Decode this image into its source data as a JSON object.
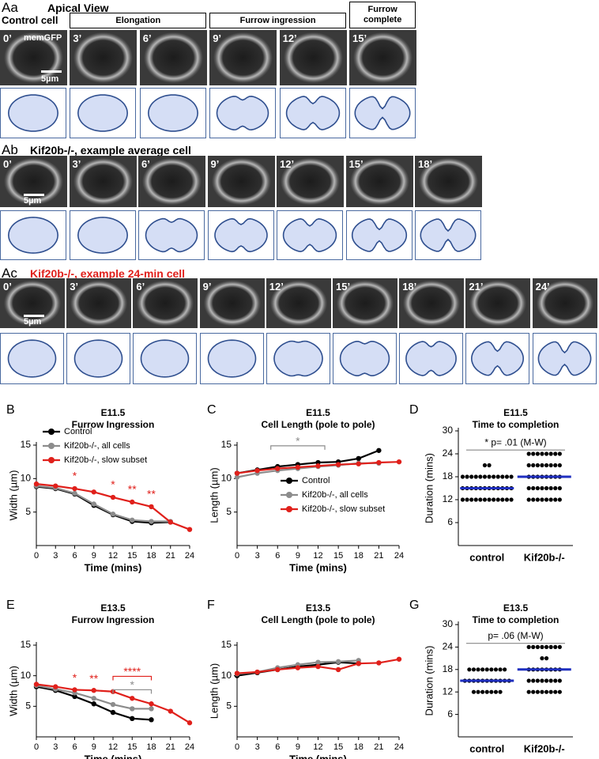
{
  "figure": {
    "rows": [
      {
        "label": "Aa",
        "title": "Apical View",
        "subtitle": "Control cell",
        "stages": [
          "Elongation",
          "Furrow ingression",
          "Furrow complete"
        ],
        "frames": [
          "0’",
          "3’",
          "6’",
          "9’",
          "12’",
          "15’"
        ],
        "marker": "memGFP",
        "scale": "5µm"
      },
      {
        "label": "Ab",
        "title": "Kif20b-/-, example average cell",
        "frames": [
          "0’",
          "3’",
          "6’",
          "9’",
          "12’",
          "15’",
          "18’"
        ],
        "scale": "5µm"
      },
      {
        "label": "Ac",
        "title": "Kif20b-/-, example 24-min cell",
        "title_color": "#e0201b",
        "frames": [
          "0’",
          "3’",
          "6’",
          "9’",
          "12’",
          "15’",
          "18’",
          "21’",
          "24’"
        ],
        "scale": "5µm"
      }
    ]
  },
  "chart_data": [
    {
      "panel": "B",
      "type": "line",
      "title": "E11.5",
      "subtitle": "Furrow Ingression",
      "x_label": "Time (mins)",
      "y_label": "Width (µm)",
      "x": [
        0,
        3,
        6,
        9,
        12,
        15,
        18,
        21,
        24
      ],
      "xlim": [
        0,
        24
      ],
      "xticks": [
        0,
        3,
        6,
        9,
        12,
        15,
        18,
        21,
        24
      ],
      "ylim": [
        0,
        15
      ],
      "yticks": [
        5,
        10,
        15
      ],
      "legend": "upper left",
      "series": [
        {
          "name": "Control",
          "color": "#000000",
          "values": [
            8.8,
            8.5,
            7.7,
            6.0,
            4.6,
            3.6,
            3.4,
            3.5,
            null
          ]
        },
        {
          "name": "Kif20b-/-, all cells",
          "color": "#8c8c8c",
          "values": [
            8.9,
            8.6,
            7.8,
            6.2,
            4.7,
            3.8,
            3.6,
            3.6,
            null
          ]
        },
        {
          "name": "Kif20b-/-, slow subset",
          "color": "#e0201b",
          "values": [
            9.2,
            8.9,
            8.5,
            8.0,
            7.2,
            6.5,
            5.8,
            3.5,
            2.4
          ]
        }
      ],
      "annotations": [
        {
          "text": "*",
          "x": 6,
          "color": "#e0201b"
        },
        {
          "text": "*",
          "x": 12,
          "color": "#e0201b"
        },
        {
          "text": "**",
          "x": 15,
          "color": "#e0201b"
        },
        {
          "text": "**",
          "x": 18,
          "color": "#e0201b"
        }
      ],
      "brackets": []
    },
    {
      "panel": "C",
      "type": "line",
      "title": "E11.5",
      "subtitle": "Cell Length (pole to pole)",
      "x_label": "Time (mins)",
      "y_label": "Length (µm)",
      "x": [
        0,
        3,
        6,
        9,
        12,
        15,
        18,
        21,
        24
      ],
      "xlim": [
        0,
        24
      ],
      "xticks": [
        0,
        3,
        6,
        9,
        12,
        15,
        18,
        21,
        24
      ],
      "ylim": [
        0,
        15
      ],
      "yticks": [
        5,
        10,
        15
      ],
      "legend": "lower right",
      "series": [
        {
          "name": "Control",
          "color": "#000000",
          "values": [
            10.8,
            11.3,
            11.8,
            12.1,
            12.4,
            12.5,
            13.0,
            14.2,
            null
          ]
        },
        {
          "name": "Kif20b-/-, all cells",
          "color": "#8c8c8c",
          "values": [
            10.2,
            10.8,
            11.2,
            11.5,
            11.8,
            12.0,
            12.3,
            12.3,
            null
          ]
        },
        {
          "name": "Kif20b-/-, slow subset",
          "color": "#e0201b",
          "values": [
            10.8,
            11.2,
            11.5,
            11.7,
            11.9,
            12.1,
            12.2,
            12.4,
            12.5
          ]
        }
      ],
      "annotations": [],
      "brackets": [
        {
          "text": "*",
          "x": [
            5,
            13
          ],
          "color": "#8c8c8c"
        }
      ]
    },
    {
      "panel": "D",
      "type": "dot",
      "title": "E11.5",
      "subtitle": "Time to completion",
      "y_label": "Duration (mins)",
      "categories": [
        "control",
        "Kif20b-/-"
      ],
      "color": "#000000",
      "mean_color": "#1f2fbf",
      "means": [
        15,
        18
      ],
      "values": [
        [
          21,
          21,
          18,
          18,
          18,
          18,
          18,
          18,
          18,
          18,
          18,
          18,
          18,
          18,
          15,
          15,
          15,
          15,
          15,
          15,
          15,
          15,
          15,
          15,
          15,
          15,
          12,
          12,
          12,
          12,
          12,
          12,
          12,
          12,
          12,
          12,
          12,
          12
        ],
        [
          24,
          24,
          24,
          24,
          24,
          24,
          24,
          24,
          21,
          21,
          21,
          21,
          21,
          21,
          21,
          21,
          18,
          18,
          18,
          18,
          18,
          18,
          18,
          18,
          15,
          15,
          15,
          15,
          15,
          15,
          15,
          15,
          12,
          12,
          12,
          12,
          12,
          12,
          12,
          12
        ]
      ],
      "ylim": [
        0,
        30
      ],
      "yticks": [
        6,
        12,
        18,
        24,
        30
      ],
      "annotation": "* p= .01 (M-W)"
    },
    {
      "panel": "E",
      "type": "line",
      "title": "E13.5",
      "subtitle": "Furrow Ingression",
      "x_label": "Time (mins)",
      "y_label": "Width (µm)",
      "x": [
        0,
        3,
        6,
        9,
        12,
        15,
        18,
        21,
        24
      ],
      "xlim": [
        0,
        24
      ],
      "xticks": [
        0,
        3,
        6,
        9,
        12,
        15,
        18,
        21,
        24
      ],
      "ylim": [
        0,
        15
      ],
      "yticks": [
        5,
        10,
        15
      ],
      "series": [
        {
          "name": "Control",
          "color": "#000000",
          "values": [
            8.2,
            7.6,
            6.6,
            5.4,
            4.0,
            3.0,
            2.8,
            null,
            null
          ]
        },
        {
          "name": "Kif20b-/-, all cells",
          "color": "#8c8c8c",
          "values": [
            8.4,
            7.8,
            7.2,
            6.3,
            5.3,
            4.6,
            4.6,
            null,
            null
          ]
        },
        {
          "name": "Kif20b-/-, slow subset",
          "color": "#e0201b",
          "values": [
            8.6,
            8.2,
            7.7,
            7.6,
            7.4,
            6.3,
            5.4,
            4.2,
            2.3
          ]
        }
      ],
      "annotations": [
        {
          "text": "*",
          "x": 6,
          "color": "#e0201b"
        },
        {
          "text": "**",
          "x": 9,
          "color": "#e0201b"
        }
      ],
      "brackets": [
        {
          "text": "****",
          "x": [
            12,
            18
          ],
          "color": "#e0201b"
        },
        {
          "text": "*",
          "x": [
            12,
            18
          ],
          "color": "#8c8c8c"
        }
      ]
    },
    {
      "panel": "F",
      "type": "line",
      "title": "E13.5",
      "subtitle": "Cell Length (pole to pole)",
      "x_label": "Time (mins)",
      "y_label": "Length (µm)",
      "x": [
        0,
        3,
        6,
        9,
        12,
        15,
        18,
        21,
        24
      ],
      "xlim": [
        0,
        24
      ],
      "xticks": [
        0,
        3,
        6,
        9,
        12,
        15,
        18,
        21,
        24
      ],
      "ylim": [
        0,
        15
      ],
      "yticks": [
        5,
        10,
        15
      ],
      "series": [
        {
          "name": "Control",
          "color": "#000000",
          "values": [
            10.0,
            10.5,
            11.0,
            11.5,
            11.8,
            12.2,
            12.0,
            null,
            null
          ]
        },
        {
          "name": "Kif20b-/-, all cells",
          "color": "#8c8c8c",
          "values": [
            10.3,
            10.6,
            11.3,
            11.8,
            12.2,
            12.3,
            12.5,
            null,
            null
          ]
        },
        {
          "name": "Kif20b-/-, slow subset",
          "color": "#e0201b",
          "values": [
            10.4,
            10.6,
            11.0,
            11.3,
            11.5,
            11.0,
            12.0,
            12.1,
            12.7
          ]
        }
      ],
      "annotations": [],
      "brackets": []
    },
    {
      "panel": "G",
      "type": "dot",
      "title": "E13.5",
      "subtitle": "Time to completion",
      "y_label": "Duration (mins)",
      "categories": [
        "control",
        "Kif20b-/-"
      ],
      "color": "#000000",
      "mean_color": "#1f2fbf",
      "means": [
        15,
        18
      ],
      "values": [
        [
          18,
          18,
          18,
          18,
          18,
          18,
          18,
          18,
          18,
          15,
          15,
          15,
          15,
          15,
          15,
          15,
          15,
          15,
          15,
          15,
          12,
          12,
          12,
          12,
          12,
          12,
          12
        ],
        [
          24,
          24,
          24,
          24,
          24,
          24,
          24,
          24,
          21,
          21,
          18,
          18,
          18,
          18,
          18,
          18,
          18,
          18,
          15,
          15,
          15,
          15,
          15,
          15,
          15,
          15,
          12,
          12,
          12,
          12,
          12,
          12,
          12,
          12
        ]
      ],
      "ylim": [
        0,
        30
      ],
      "yticks": [
        6,
        12,
        18,
        24,
        30
      ],
      "annotation": "p= .06 (M-W)"
    }
  ]
}
